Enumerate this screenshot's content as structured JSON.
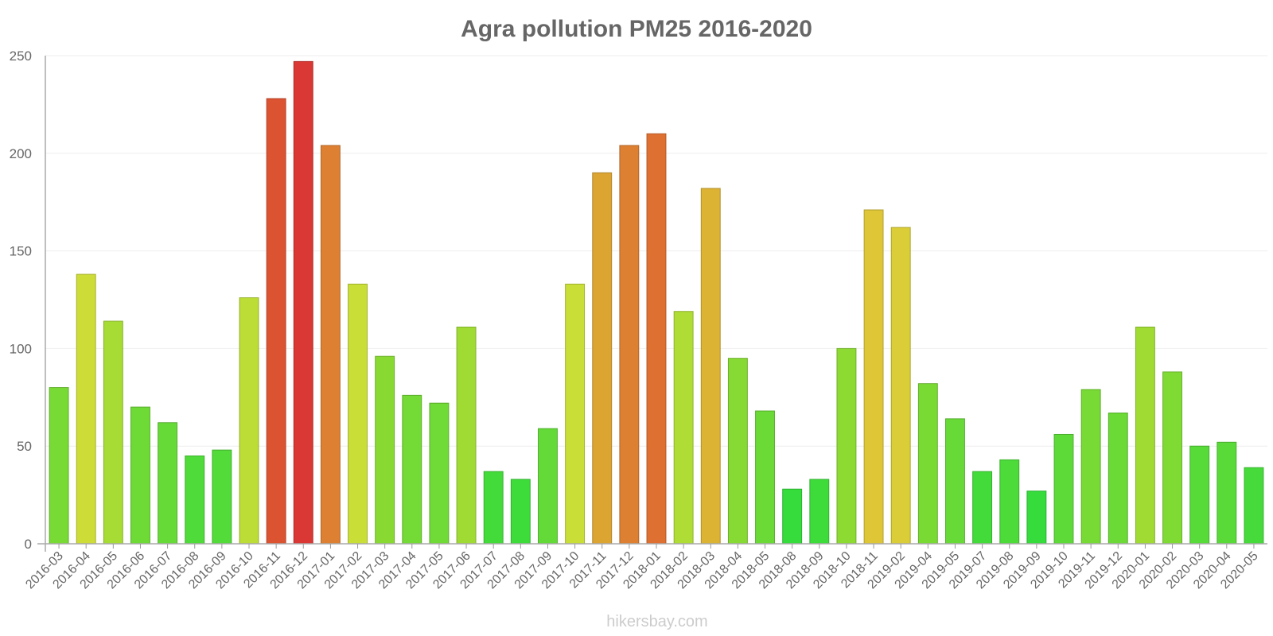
{
  "chart_data": {
    "type": "bar",
    "title": "Agra pollution PM25 2016-2020",
    "xlabel": "",
    "ylabel": "",
    "ylim": [
      0,
      250
    ],
    "yticks": [
      0,
      50,
      100,
      150,
      200,
      250
    ],
    "grid": true,
    "categories": [
      "2016-03",
      "2016-04",
      "2016-05",
      "2016-06",
      "2016-07",
      "2016-08",
      "2016-09",
      "2016-10",
      "2016-11",
      "2016-12",
      "2017-01",
      "2017-02",
      "2017-03",
      "2017-04",
      "2017-05",
      "2017-06",
      "2017-07",
      "2017-08",
      "2017-09",
      "2017-10",
      "2017-11",
      "2017-12",
      "2018-01",
      "2018-02",
      "2018-03",
      "2018-04",
      "2018-05",
      "2018-08",
      "2018-09",
      "2018-10",
      "2018-11",
      "2019-02",
      "2019-04",
      "2019-05",
      "2019-07",
      "2019-08",
      "2019-09",
      "2019-10",
      "2019-11",
      "2019-12",
      "2020-01",
      "2020-02",
      "2020-03",
      "2020-04",
      "2020-05"
    ],
    "values": [
      80,
      138,
      114,
      70,
      62,
      45,
      48,
      126,
      228,
      247,
      204,
      133,
      96,
      76,
      72,
      111,
      37,
      33,
      59,
      133,
      190,
      204,
      210,
      119,
      182,
      95,
      68,
      28,
      33,
      100,
      171,
      162,
      82,
      64,
      37,
      43,
      27,
      56,
      79,
      67,
      111,
      88,
      50,
      52,
      39
    ]
  },
  "watermark": "hikersbay.com"
}
